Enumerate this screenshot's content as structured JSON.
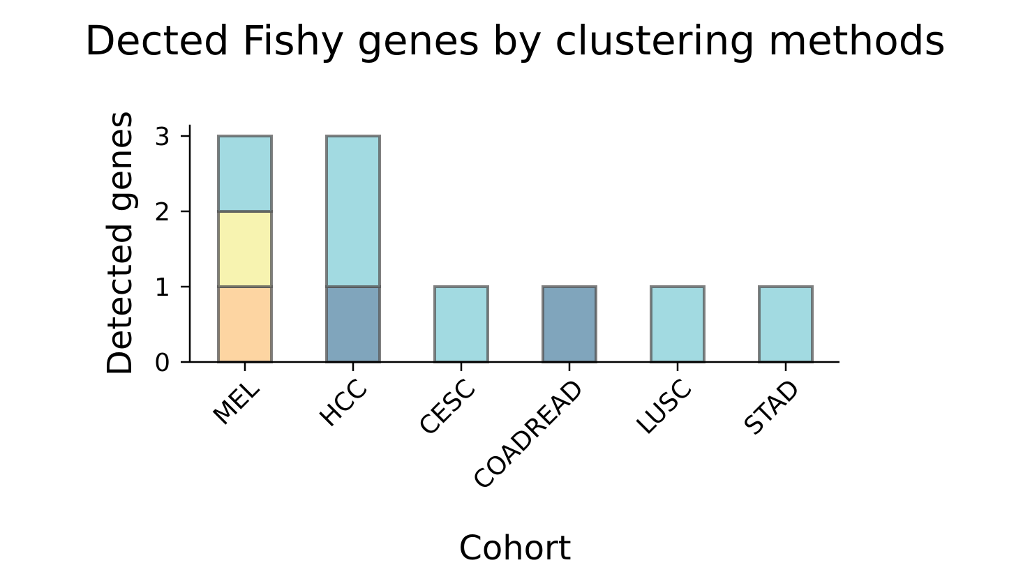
{
  "chart_data": {
    "type": "bar",
    "stacked": true,
    "title": "Dected Fishy genes by clustering methods",
    "xlabel": "Cohort",
    "ylabel": "Detected genes",
    "categories": [
      "MEL",
      "HCC",
      "CESC",
      "COADREAD",
      "LUSC",
      "STAD"
    ],
    "ylim": [
      0,
      3.15
    ],
    "yticks": [
      0,
      1,
      2,
      3
    ],
    "series": [
      {
        "color": "#fdd5a2",
        "values": [
          1,
          0,
          0,
          0,
          0,
          0
        ]
      },
      {
        "color": "#80a5bc",
        "values": [
          0,
          1,
          0,
          1,
          0,
          0
        ]
      },
      {
        "color": "#f7f3b0",
        "values": [
          1,
          0,
          0,
          0,
          0,
          0
        ]
      },
      {
        "color": "#a2dae1",
        "values": [
          1,
          2,
          1,
          0,
          1,
          1
        ]
      }
    ],
    "edge_color": "#555555",
    "grid": false,
    "legend": "none"
  }
}
